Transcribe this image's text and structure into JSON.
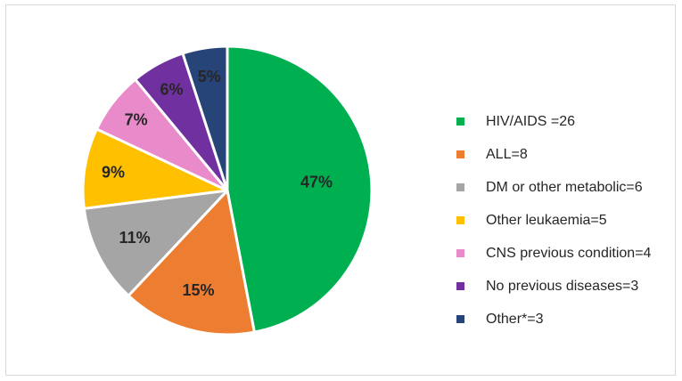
{
  "chart_data": {
    "type": "pie",
    "slices": [
      {
        "label": "HIV/AIDS =26",
        "value": 47,
        "display": "47%",
        "color": "#00b050"
      },
      {
        "label": "ALL=8",
        "value": 15,
        "display": "15%",
        "color": "#ed7d31"
      },
      {
        "label": "DM or other metabolic=6",
        "value": 11,
        "display": "11%",
        "color": "#a5a5a5"
      },
      {
        "label": "Other leukaemia=5",
        "value": 9,
        "display": "9%",
        "color": "#ffc000"
      },
      {
        "label": "CNS previous condition=4",
        "value": 7,
        "display": "7%",
        "color": "#e98bcb"
      },
      {
        "label": "No previous diseases=3",
        "value": 6,
        "display": "6%",
        "color": "#7030a0"
      },
      {
        "label": "Other*=3",
        "value": 5,
        "display": "5%",
        "color": "#264478"
      }
    ],
    "legend_position": "right",
    "start": "12 o'clock, clockwise"
  }
}
